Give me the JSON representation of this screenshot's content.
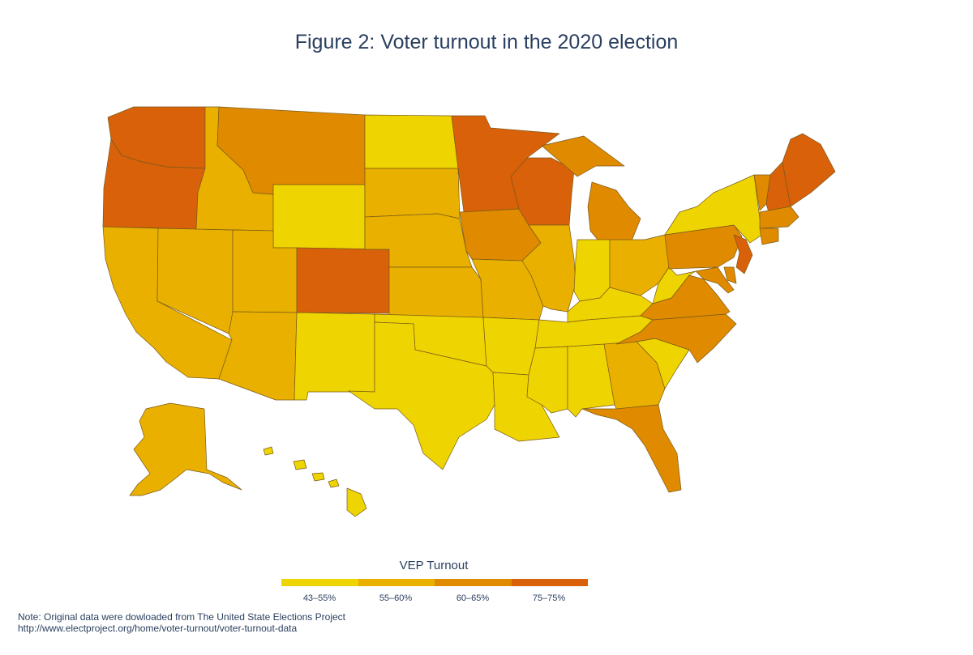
{
  "title": "Figure 2: Voter turnout in the 2020 election",
  "legend": {
    "title": "VEP Turnout",
    "bins": [
      {
        "label": "43–55%",
        "color": "#eed400"
      },
      {
        "label": "55–60%",
        "color": "#e9b000"
      },
      {
        "label": "60–65%",
        "color": "#e08a00"
      },
      {
        "label": "75–75%",
        "color": "#d8610a"
      }
    ]
  },
  "note": {
    "line1": "Note: Original data were dowloaded from The United State Elections Project",
    "line2": "http://www.electproject.org/home/voter-turnout/voter-turnout-data"
  },
  "states": {
    "WA": 3,
    "OR": 3,
    "CA": 1,
    "NV": 1,
    "ID": 1,
    "MT": 2,
    "WY": 0,
    "UT": 1,
    "AZ": 1,
    "CO": 3,
    "NM": 0,
    "ND": 0,
    "SD": 1,
    "NE": 1,
    "KS": 1,
    "OK": 0,
    "TX": 0,
    "MN": 3,
    "IA": 2,
    "MO": 1,
    "AR": 0,
    "LA": 0,
    "WI": 3,
    "IL": 1,
    "MI": 2,
    "IN": 0,
    "OH": 1,
    "KY": 0,
    "TN": 0,
    "MS": 0,
    "AL": 0,
    "GA": 1,
    "FL": 2,
    "SC": 0,
    "NC": 2,
    "VA": 2,
    "WV": 0,
    "PA": 2,
    "NY": 0,
    "VT": 2,
    "NH": 3,
    "ME": 3,
    "MA": 2,
    "CT": 2,
    "NJ": 3,
    "MD": 2,
    "DE": 2,
    "AK": 1,
    "HI": 0
  }
}
